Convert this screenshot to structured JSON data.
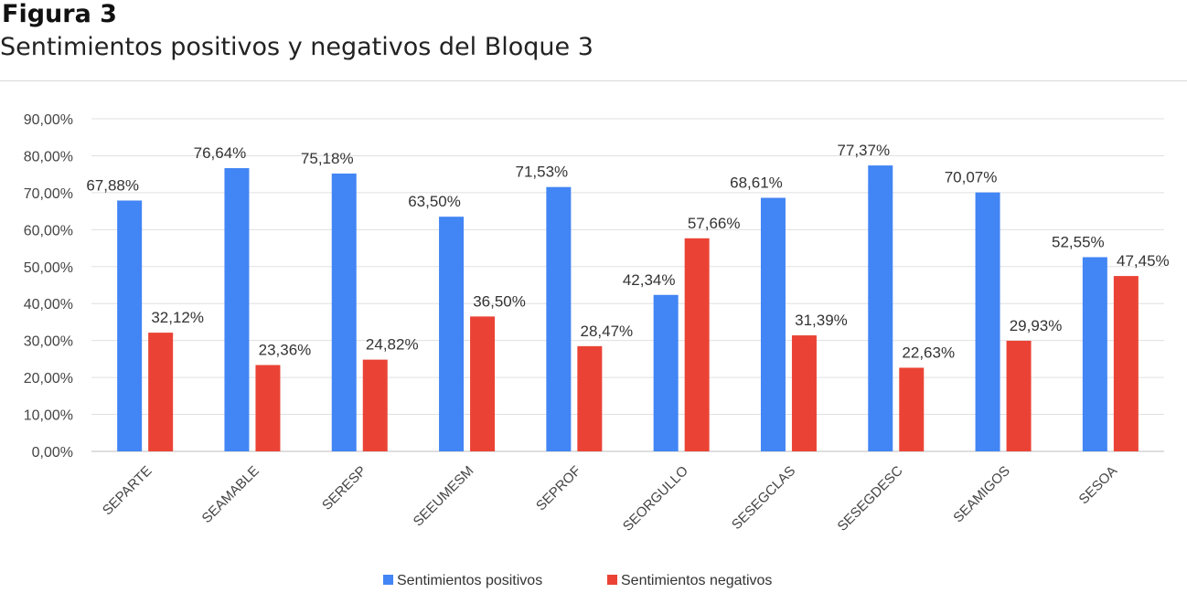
{
  "figure": {
    "label": "Figura 3",
    "title": "Sentimientos positivos y negativos del Bloque 3"
  },
  "chart_data": {
    "type": "bar",
    "title": "Sentimientos positivos y negativos del Bloque 3",
    "xlabel": "",
    "ylabel": "",
    "ylim": [
      0,
      90
    ],
    "y_ticks": [
      "0,00%",
      "10,00%",
      "20,00%",
      "30,00%",
      "40,00%",
      "50,00%",
      "60,00%",
      "70,00%",
      "80,00%",
      "90,00%"
    ],
    "grid": true,
    "legend_position": "bottom",
    "categories": [
      "SEPARTE",
      "SEAMABLE",
      "SERESP",
      "SEEUMESM",
      "SEPROF",
      "SEORGULLO",
      "SESEGCLAS",
      "SESEGDESC",
      "SEAMIGOS",
      "SESOA"
    ],
    "series": [
      {
        "name": "Sentimientos positivos",
        "color": "#4285f4",
        "values": [
          67.88,
          76.64,
          75.18,
          63.5,
          71.53,
          42.34,
          68.61,
          77.37,
          70.07,
          52.55
        ],
        "labels": [
          "67,88%",
          "76,64%",
          "75,18%",
          "63,50%",
          "71,53%",
          "42,34%",
          "68,61%",
          "77,37%",
          "70,07%",
          "52,55%"
        ]
      },
      {
        "name": "Sentimientos negativos",
        "color": "#ea4335",
        "values": [
          32.12,
          23.36,
          24.82,
          36.5,
          28.47,
          57.66,
          31.39,
          22.63,
          29.93,
          47.45
        ],
        "labels": [
          "32,12%",
          "23,36%",
          "24,82%",
          "36,50%",
          "28,47%",
          "57,66%",
          "31,39%",
          "22,63%",
          "29,93%",
          "47,45%"
        ]
      }
    ]
  }
}
